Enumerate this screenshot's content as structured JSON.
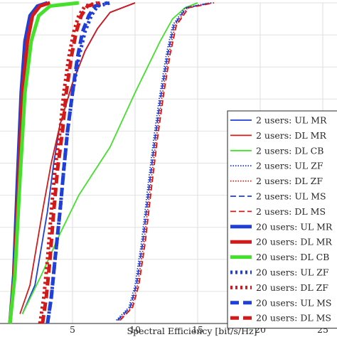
{
  "chart_data": {
    "type": "line",
    "title": "",
    "xlabel": "Spectral Efficiency [bit/s/Hz]",
    "ylabel": "",
    "xlim": [
      0,
      26
    ],
    "ylim": [
      0,
      1
    ],
    "x_ticks": [
      5,
      10,
      15,
      20,
      25
    ],
    "x_tick_labels": [
      "5",
      "10",
      "15",
      "20",
      "25"
    ],
    "grid": true,
    "legend_position": "bottom-right",
    "colors": {
      "blue": "#1f3fd6",
      "red": "#d21a1a",
      "green": "#44e02c"
    },
    "series": [
      {
        "name": "2 users: UL MR",
        "color": "#1f3fd6",
        "style": "solid",
        "width": "thin",
        "x": [
          1.0,
          2.0,
          3.0,
          3.5,
          4.0,
          5.0,
          6.0,
          7.0,
          8.0,
          10.0
        ],
        "y": [
          0.03,
          0.12,
          0.35,
          0.5,
          0.62,
          0.75,
          0.85,
          0.92,
          0.97,
          1.0
        ]
      },
      {
        "name": "2 users: DL MR",
        "color": "#d21a1a",
        "style": "solid",
        "width": "thin",
        "x": [
          0.8,
          1.6,
          2.6,
          3.3,
          4.0,
          5.0,
          6.0,
          7.0,
          8.0,
          10.0
        ],
        "y": [
          0.03,
          0.12,
          0.35,
          0.5,
          0.62,
          0.75,
          0.85,
          0.92,
          0.97,
          1.0
        ]
      },
      {
        "name": "2 users: DL CB",
        "color": "#44e02c",
        "style": "solid",
        "width": "thin",
        "x": [
          1.0,
          2.5,
          4.0,
          5.5,
          6.5,
          8.0,
          10.0,
          11.0,
          12.0,
          13.0,
          14.0,
          15.0
        ],
        "y": [
          0.03,
          0.15,
          0.28,
          0.4,
          0.46,
          0.55,
          0.72,
          0.8,
          0.88,
          0.95,
          0.985,
          1.0
        ]
      },
      {
        "name": "2 users: UL ZF",
        "color": "#1f3fd6",
        "style": "dotted",
        "width": "thin",
        "x": [
          8.5,
          9.5,
          10.0,
          10.5,
          11.0,
          11.5,
          12.0,
          12.5,
          13.0,
          14.0,
          16.0
        ],
        "y": [
          0.01,
          0.05,
          0.12,
          0.25,
          0.42,
          0.58,
          0.72,
          0.84,
          0.93,
          0.985,
          1.0
        ]
      },
      {
        "name": "2 users: DL ZF",
        "color": "#d21a1a",
        "style": "dotted",
        "width": "thin",
        "x": [
          8.7,
          9.7,
          10.2,
          10.7,
          11.2,
          11.7,
          12.2,
          12.7,
          13.2,
          14.2,
          16.2
        ],
        "y": [
          0.01,
          0.05,
          0.12,
          0.25,
          0.42,
          0.58,
          0.72,
          0.84,
          0.93,
          0.985,
          1.0
        ]
      },
      {
        "name": "2 users: UL MS",
        "color": "#1f3fd6",
        "style": "dashed",
        "width": "thin",
        "x": [
          8.6,
          9.6,
          10.1,
          10.6,
          11.1,
          11.6,
          12.1,
          12.6,
          13.1,
          14.1,
          16.1
        ],
        "y": [
          0.01,
          0.05,
          0.12,
          0.25,
          0.42,
          0.58,
          0.72,
          0.84,
          0.93,
          0.985,
          1.0
        ]
      },
      {
        "name": "2 users: DL MS",
        "color": "#d21a1a",
        "style": "dashed",
        "width": "thin",
        "x": [
          8.8,
          9.8,
          10.3,
          10.8,
          11.3,
          11.8,
          12.3,
          12.8,
          13.3,
          14.3,
          16.3
        ],
        "y": [
          0.01,
          0.05,
          0.12,
          0.25,
          0.42,
          0.58,
          0.72,
          0.84,
          0.93,
          0.985,
          1.0
        ]
      },
      {
        "name": "20 users: UL MR",
        "color": "#1f3fd6",
        "style": "solid",
        "width": "thick",
        "x": [
          0.0,
          0.3,
          0.6,
          0.9,
          1.2,
          1.6,
          2.2,
          3.0
        ],
        "y": [
          0.0,
          0.15,
          0.45,
          0.72,
          0.88,
          0.96,
          0.99,
          1.0
        ]
      },
      {
        "name": "20 users: DL MR",
        "color": "#d21a1a",
        "style": "solid",
        "width": "thick",
        "x": [
          0.0,
          0.35,
          0.7,
          1.0,
          1.4,
          1.8,
          2.4,
          3.2
        ],
        "y": [
          0.0,
          0.15,
          0.45,
          0.72,
          0.88,
          0.96,
          0.99,
          1.0
        ]
      },
      {
        "name": "20 users: DL CB",
        "color": "#44e02c",
        "style": "solid",
        "width": "thick",
        "x": [
          0.0,
          0.4,
          0.8,
          1.2,
          1.7,
          2.3,
          3.2,
          5.5
        ],
        "y": [
          0.0,
          0.15,
          0.45,
          0.72,
          0.88,
          0.96,
          0.99,
          1.0
        ]
      },
      {
        "name": "20 users: UL ZF",
        "color": "#1f3fd6",
        "style": "dotted",
        "width": "thick",
        "x": [
          3.0,
          3.3,
          3.6,
          4.0,
          4.3,
          4.6,
          5.0,
          5.5,
          6.0,
          6.5,
          7.0,
          8.0
        ],
        "y": [
          0.0,
          0.08,
          0.2,
          0.35,
          0.48,
          0.6,
          0.72,
          0.83,
          0.91,
          0.96,
          0.99,
          1.0
        ]
      },
      {
        "name": "20 users: DL ZF",
        "color": "#d21a1a",
        "style": "dotted",
        "width": "thick",
        "x": [
          2.4,
          2.7,
          3.0,
          3.3,
          3.6,
          4.0,
          4.3,
          4.7,
          5.1,
          5.5,
          6.0,
          7.0
        ],
        "y": [
          0.0,
          0.08,
          0.2,
          0.35,
          0.48,
          0.6,
          0.72,
          0.83,
          0.91,
          0.96,
          0.99,
          1.0
        ]
      },
      {
        "name": "20 users: UL MS",
        "color": "#1f3fd6",
        "style": "dashed",
        "width": "thick",
        "x": [
          3.0,
          3.3,
          3.6,
          4.0,
          4.3,
          4.6,
          5.0,
          5.4,
          5.8,
          6.3,
          6.8,
          7.8
        ],
        "y": [
          0.0,
          0.08,
          0.2,
          0.35,
          0.48,
          0.6,
          0.72,
          0.83,
          0.91,
          0.96,
          0.99,
          1.0
        ]
      },
      {
        "name": "20 users: DL MS",
        "color": "#d21a1a",
        "style": "dashed",
        "width": "thick",
        "x": [
          2.6,
          2.9,
          3.2,
          3.5,
          3.8,
          4.2,
          4.5,
          4.9,
          5.3,
          5.7,
          6.2,
          7.2
        ],
        "y": [
          0.0,
          0.08,
          0.2,
          0.35,
          0.48,
          0.6,
          0.72,
          0.83,
          0.91,
          0.96,
          0.99,
          1.0
        ]
      }
    ]
  }
}
